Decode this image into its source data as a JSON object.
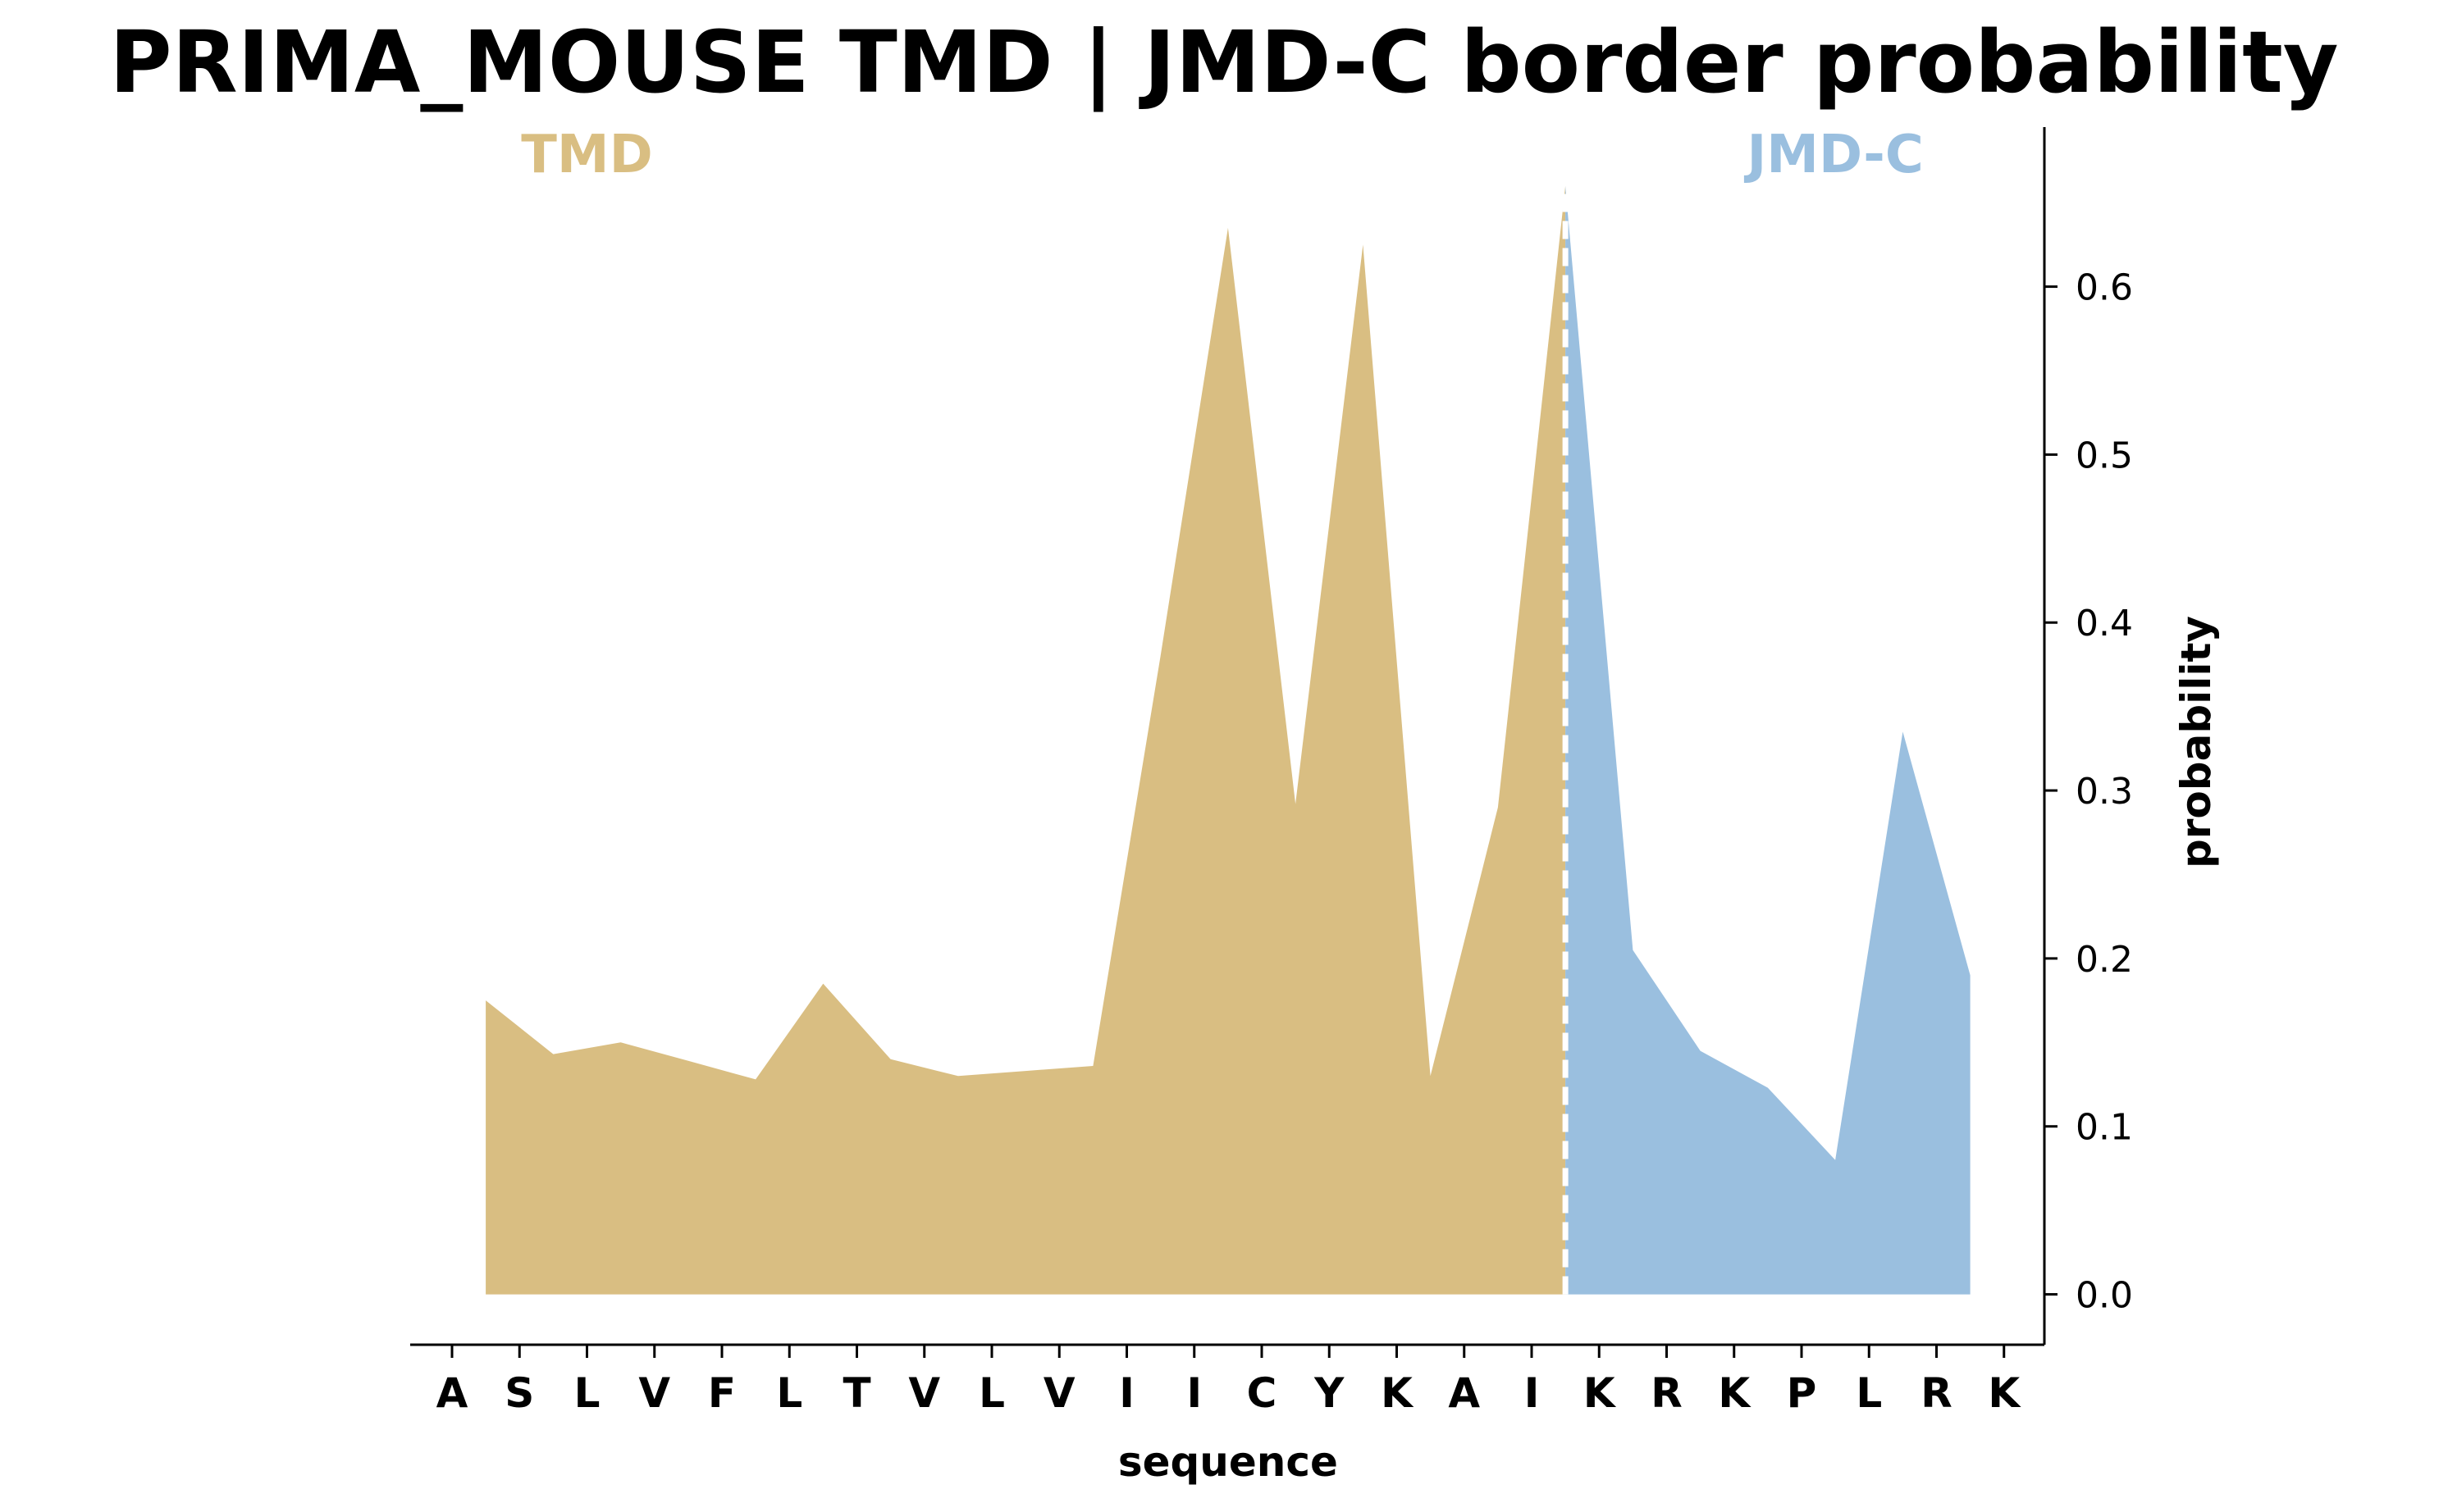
{
  "chart_data": {
    "type": "area",
    "title": "PRIMA_MOUSE TMD | JMD-C border probability",
    "xlabel": "sequence",
    "ylabel": "probability",
    "categories": [
      "A",
      "S",
      "L",
      "V",
      "F",
      "L",
      "T",
      "V",
      "L",
      "V",
      "I",
      "I",
      "C",
      "Y",
      "K",
      "A",
      "I",
      "K",
      "R",
      "K",
      "P",
      "L",
      "R",
      "K"
    ],
    "ylim": [
      -0.03,
      0.695
    ],
    "yticks": [
      0.0,
      0.1,
      0.2,
      0.3,
      0.4,
      0.5,
      0.6
    ],
    "ytick_labels": [
      "0.0",
      "0.1",
      "0.2",
      "0.3",
      "0.4",
      "0.5",
      "0.6"
    ],
    "y_axis_side": "right",
    "grid": false,
    "border_position": 16.5,
    "regions": [
      {
        "label": "TMD",
        "color": "#d9be82"
      },
      {
        "label": "JMD-C",
        "color": "#9abfdf"
      }
    ],
    "series": [
      {
        "region": "TMD",
        "x": [
          0.5,
          1.5,
          2.5,
          3.5,
          4.5,
          5.5,
          6.5,
          7.5,
          8.5,
          9.5,
          10.5,
          11.5,
          12.5,
          13.5,
          14.5,
          15.5,
          16.5
        ],
        "values": [
          0.175,
          0.143,
          0.15,
          0.139,
          0.128,
          0.185,
          0.14,
          0.13,
          0.133,
          0.136,
          0.38,
          0.635,
          0.292,
          0.625,
          0.13,
          0.29,
          0.66
        ]
      },
      {
        "region": "JMD-C",
        "x": [
          16.5,
          17.5,
          18.5,
          19.5,
          20.5,
          21.5,
          22.5
        ],
        "values": [
          0.66,
          0.205,
          0.145,
          0.123,
          0.08,
          0.335,
          0.19
        ]
      }
    ]
  }
}
